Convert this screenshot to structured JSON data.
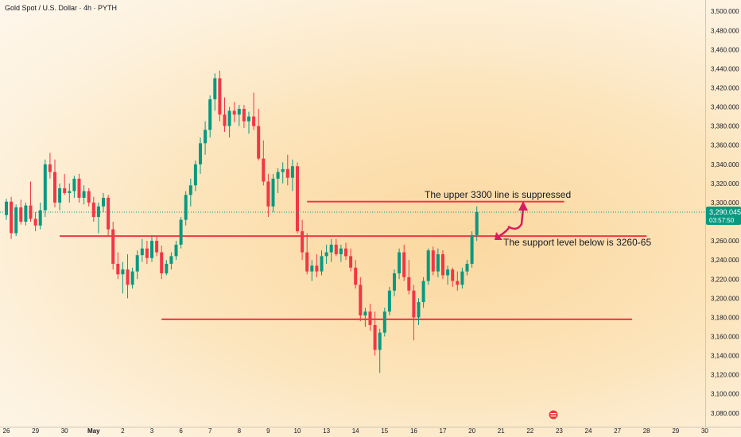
{
  "title": "Gold Spot / U.S. Dollar · 4h · PYTH",
  "chart_data": {
    "type": "candlestick",
    "title": "Gold Spot / U.S. Dollar · 4h · PYTH",
    "ylim": [
      3074,
      3506
    ],
    "grid": false,
    "y_ticks": [
      "3,500.000",
      "3,480.000",
      "3,460.000",
      "3,440.000",
      "3,420.000",
      "3,400.000",
      "3,380.000",
      "3,360.000",
      "3,340.000",
      "3,320.000",
      "3,300.000",
      "3,280.000",
      "3,260.000",
      "3,240.000",
      "3,220.000",
      "3,200.000",
      "3,180.000",
      "3,160.000",
      "3,140.000",
      "3,120.000",
      "3,100.000",
      "3,080.000"
    ],
    "y_tick_values": [
      3500,
      3480,
      3460,
      3440,
      3420,
      3400,
      3380,
      3360,
      3340,
      3320,
      3300,
      3280,
      3260,
      3240,
      3220,
      3200,
      3180,
      3160,
      3140,
      3120,
      3100,
      3080
    ],
    "x_ticks": [
      "26",
      "29",
      "30",
      "May",
      "2",
      "3",
      "6",
      "7",
      "8",
      "9",
      "10",
      "13",
      "14",
      "15",
      "16",
      "17",
      "20",
      "21",
      "22",
      "23",
      "24",
      "27",
      "28",
      "29",
      "30"
    ],
    "x_tick_index": [
      0,
      6,
      12,
      18,
      24,
      30,
      36,
      42,
      48,
      54,
      60,
      66,
      72,
      78,
      84,
      90,
      96,
      102,
      108,
      114,
      120,
      126,
      132,
      138,
      144
    ],
    "current_price": {
      "value": "3,290.045",
      "countdown": "03:57:50",
      "level": 3290.045
    },
    "horizontal_levels": [
      {
        "value": 3301,
        "from_index": 62,
        "to_index": 115,
        "color": "#f23645"
      },
      {
        "value": 3265,
        "from_index": 11,
        "to_index": 132,
        "color": "#f23645"
      },
      {
        "value": 3178,
        "from_index": 32,
        "to_index": 129,
        "color": "#f23645"
      }
    ],
    "annotations": [
      {
        "text": "The upper 3300 line is suppressed"
      },
      {
        "text": "The support level below is 3260-65"
      }
    ],
    "up_color": "#089981",
    "down_color": "#f23645",
    "candles": [
      [
        3287,
        3304,
        3282,
        3301
      ],
      [
        3301,
        3306,
        3262,
        3268
      ],
      [
        3268,
        3298,
        3265,
        3295
      ],
      [
        3295,
        3303,
        3277,
        3280
      ],
      [
        3280,
        3300,
        3276,
        3297
      ],
      [
        3297,
        3322,
        3280,
        3283
      ],
      [
        3283,
        3290,
        3270,
        3276
      ],
      [
        3276,
        3300,
        3272,
        3292
      ],
      [
        3292,
        3345,
        3285,
        3340
      ],
      [
        3340,
        3352,
        3325,
        3332
      ],
      [
        3332,
        3345,
        3295,
        3300
      ],
      [
        3300,
        3320,
        3292,
        3315
      ],
      [
        3315,
        3330,
        3308,
        3310
      ],
      [
        3310,
        3320,
        3300,
        3312
      ],
      [
        3312,
        3328,
        3305,
        3325
      ],
      [
        3325,
        3330,
        3300,
        3305
      ],
      [
        3305,
        3318,
        3298,
        3312
      ],
      [
        3312,
        3315,
        3296,
        3300
      ],
      [
        3300,
        3306,
        3280,
        3285
      ],
      [
        3285,
        3300,
        3268,
        3296
      ],
      [
        3296,
        3310,
        3290,
        3305
      ],
      [
        3305,
        3308,
        3265,
        3272
      ],
      [
        3272,
        3280,
        3230,
        3236
      ],
      [
        3236,
        3248,
        3220,
        3225
      ],
      [
        3225,
        3238,
        3205,
        3230
      ],
      [
        3230,
        3246,
        3200,
        3214
      ],
      [
        3214,
        3232,
        3210,
        3228
      ],
      [
        3228,
        3250,
        3220,
        3245
      ],
      [
        3245,
        3262,
        3238,
        3252
      ],
      [
        3252,
        3260,
        3236,
        3242
      ],
      [
        3242,
        3266,
        3238,
        3260
      ],
      [
        3260,
        3265,
        3244,
        3248
      ],
      [
        3248,
        3255,
        3220,
        3226
      ],
      [
        3226,
        3240,
        3224,
        3236
      ],
      [
        3236,
        3248,
        3230,
        3244
      ],
      [
        3244,
        3260,
        3240,
        3256
      ],
      [
        3256,
        3285,
        3252,
        3282
      ],
      [
        3282,
        3312,
        3276,
        3308
      ],
      [
        3308,
        3325,
        3296,
        3318
      ],
      [
        3318,
        3344,
        3312,
        3340
      ],
      [
        3340,
        3368,
        3330,
        3362
      ],
      [
        3362,
        3385,
        3350,
        3376
      ],
      [
        3376,
        3412,
        3368,
        3408
      ],
      [
        3408,
        3435,
        3396,
        3430
      ],
      [
        3430,
        3438,
        3385,
        3392
      ],
      [
        3392,
        3410,
        3374,
        3380
      ],
      [
        3380,
        3400,
        3368,
        3396
      ],
      [
        3396,
        3405,
        3384,
        3392
      ],
      [
        3392,
        3402,
        3380,
        3398
      ],
      [
        3398,
        3402,
        3378,
        3385
      ],
      [
        3385,
        3395,
        3372,
        3390
      ],
      [
        3390,
        3415,
        3376,
        3380
      ],
      [
        3380,
        3398,
        3344,
        3346
      ],
      [
        3346,
        3365,
        3318,
        3322
      ],
      [
        3322,
        3330,
        3285,
        3296
      ],
      [
        3296,
        3330,
        3290,
        3325
      ],
      [
        3325,
        3336,
        3310,
        3332
      ],
      [
        3332,
        3342,
        3320,
        3335
      ],
      [
        3335,
        3350,
        3318,
        3326
      ],
      [
        3326,
        3345,
        3312,
        3338
      ],
      [
        3338,
        3342,
        3268,
        3270
      ],
      [
        3270,
        3282,
        3240,
        3248
      ],
      [
        3248,
        3268,
        3225,
        3228
      ],
      [
        3228,
        3240,
        3218,
        3234
      ],
      [
        3234,
        3246,
        3222,
        3228
      ],
      [
        3228,
        3250,
        3224,
        3244
      ],
      [
        3244,
        3256,
        3236,
        3248
      ],
      [
        3248,
        3262,
        3238,
        3256
      ],
      [
        3256,
        3262,
        3244,
        3246
      ],
      [
        3246,
        3256,
        3238,
        3252
      ],
      [
        3252,
        3258,
        3240,
        3244
      ],
      [
        3244,
        3252,
        3228,
        3232
      ],
      [
        3232,
        3240,
        3210,
        3214
      ],
      [
        3214,
        3222,
        3176,
        3182
      ],
      [
        3182,
        3190,
        3170,
        3186
      ],
      [
        3186,
        3194,
        3166,
        3172
      ],
      [
        3172,
        3186,
        3140,
        3146
      ],
      [
        3146,
        3168,
        3122,
        3164
      ],
      [
        3164,
        3190,
        3160,
        3186
      ],
      [
        3186,
        3212,
        3182,
        3208
      ],
      [
        3208,
        3230,
        3202,
        3226
      ],
      [
        3226,
        3252,
        3220,
        3248
      ],
      [
        3248,
        3256,
        3218,
        3222
      ],
      [
        3222,
        3240,
        3204,
        3208
      ],
      [
        3208,
        3214,
        3156,
        3180
      ],
      [
        3180,
        3200,
        3172,
        3196
      ],
      [
        3196,
        3222,
        3190,
        3218
      ],
      [
        3218,
        3252,
        3214,
        3250
      ],
      [
        3250,
        3254,
        3224,
        3228
      ],
      [
        3228,
        3252,
        3222,
        3246
      ],
      [
        3246,
        3250,
        3220,
        3224
      ],
      [
        3224,
        3234,
        3214,
        3230
      ],
      [
        3230,
        3232,
        3212,
        3218
      ],
      [
        3218,
        3228,
        3208,
        3214
      ],
      [
        3214,
        3232,
        3210,
        3228
      ],
      [
        3228,
        3240,
        3224,
        3236
      ],
      [
        3236,
        3270,
        3232,
        3266
      ],
      [
        3266,
        3296,
        3260,
        3290
      ]
    ]
  }
}
